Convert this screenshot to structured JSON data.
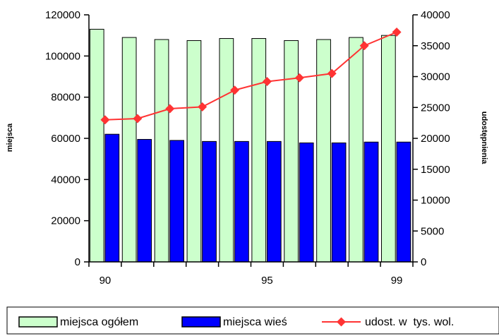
{
  "chart_data": {
    "type": "bar",
    "x": [
      90,
      91,
      92,
      93,
      94,
      95,
      96,
      97,
      98,
      99
    ],
    "x_tick_labels": [
      {
        "x": 90,
        "label": "90"
      },
      {
        "x": 95,
        "label": "95"
      },
      {
        "x": 99,
        "label": "99"
      }
    ],
    "ylabel_left": "miejsca",
    "ylabel_right": "udostępnienia",
    "ylim_left": [
      0,
      120000
    ],
    "ylim_right": [
      0,
      40000
    ],
    "yticks_left": [
      0,
      20000,
      40000,
      60000,
      80000,
      100000,
      120000
    ],
    "yticks_left_labels": [
      "0",
      "20000",
      "40000",
      "60000",
      "80000",
      "100000",
      "120000"
    ],
    "yticks_right": [
      0,
      5000,
      10000,
      15000,
      20000,
      25000,
      30000,
      35000,
      40000
    ],
    "yticks_right_labels": [
      "0",
      "5000",
      "10000",
      "15000",
      "20000",
      "25000",
      "30000",
      "35000",
      "40000"
    ],
    "grid": false,
    "legend_position": "bottom",
    "series": [
      {
        "name": "miejsca ogółem",
        "type": "bar",
        "axis": "left",
        "color": "#ccffcc",
        "values": [
          113000,
          109000,
          108000,
          107500,
          108500,
          108500,
          107500,
          108000,
          109000,
          110000
        ]
      },
      {
        "name": "miejsca wieś",
        "type": "bar",
        "axis": "left",
        "color": "#0000ff",
        "values": [
          62000,
          59500,
          59000,
          58500,
          58500,
          58500,
          57800,
          57800,
          58200,
          58200
        ]
      },
      {
        "name": "udost. w  tys. wol.",
        "type": "line",
        "axis": "right",
        "color": "#ff3333",
        "marker_color": "#ff3333",
        "values": [
          23000,
          23200,
          24800,
          25100,
          27800,
          29200,
          29800,
          30500,
          35000,
          37200
        ]
      }
    ]
  }
}
